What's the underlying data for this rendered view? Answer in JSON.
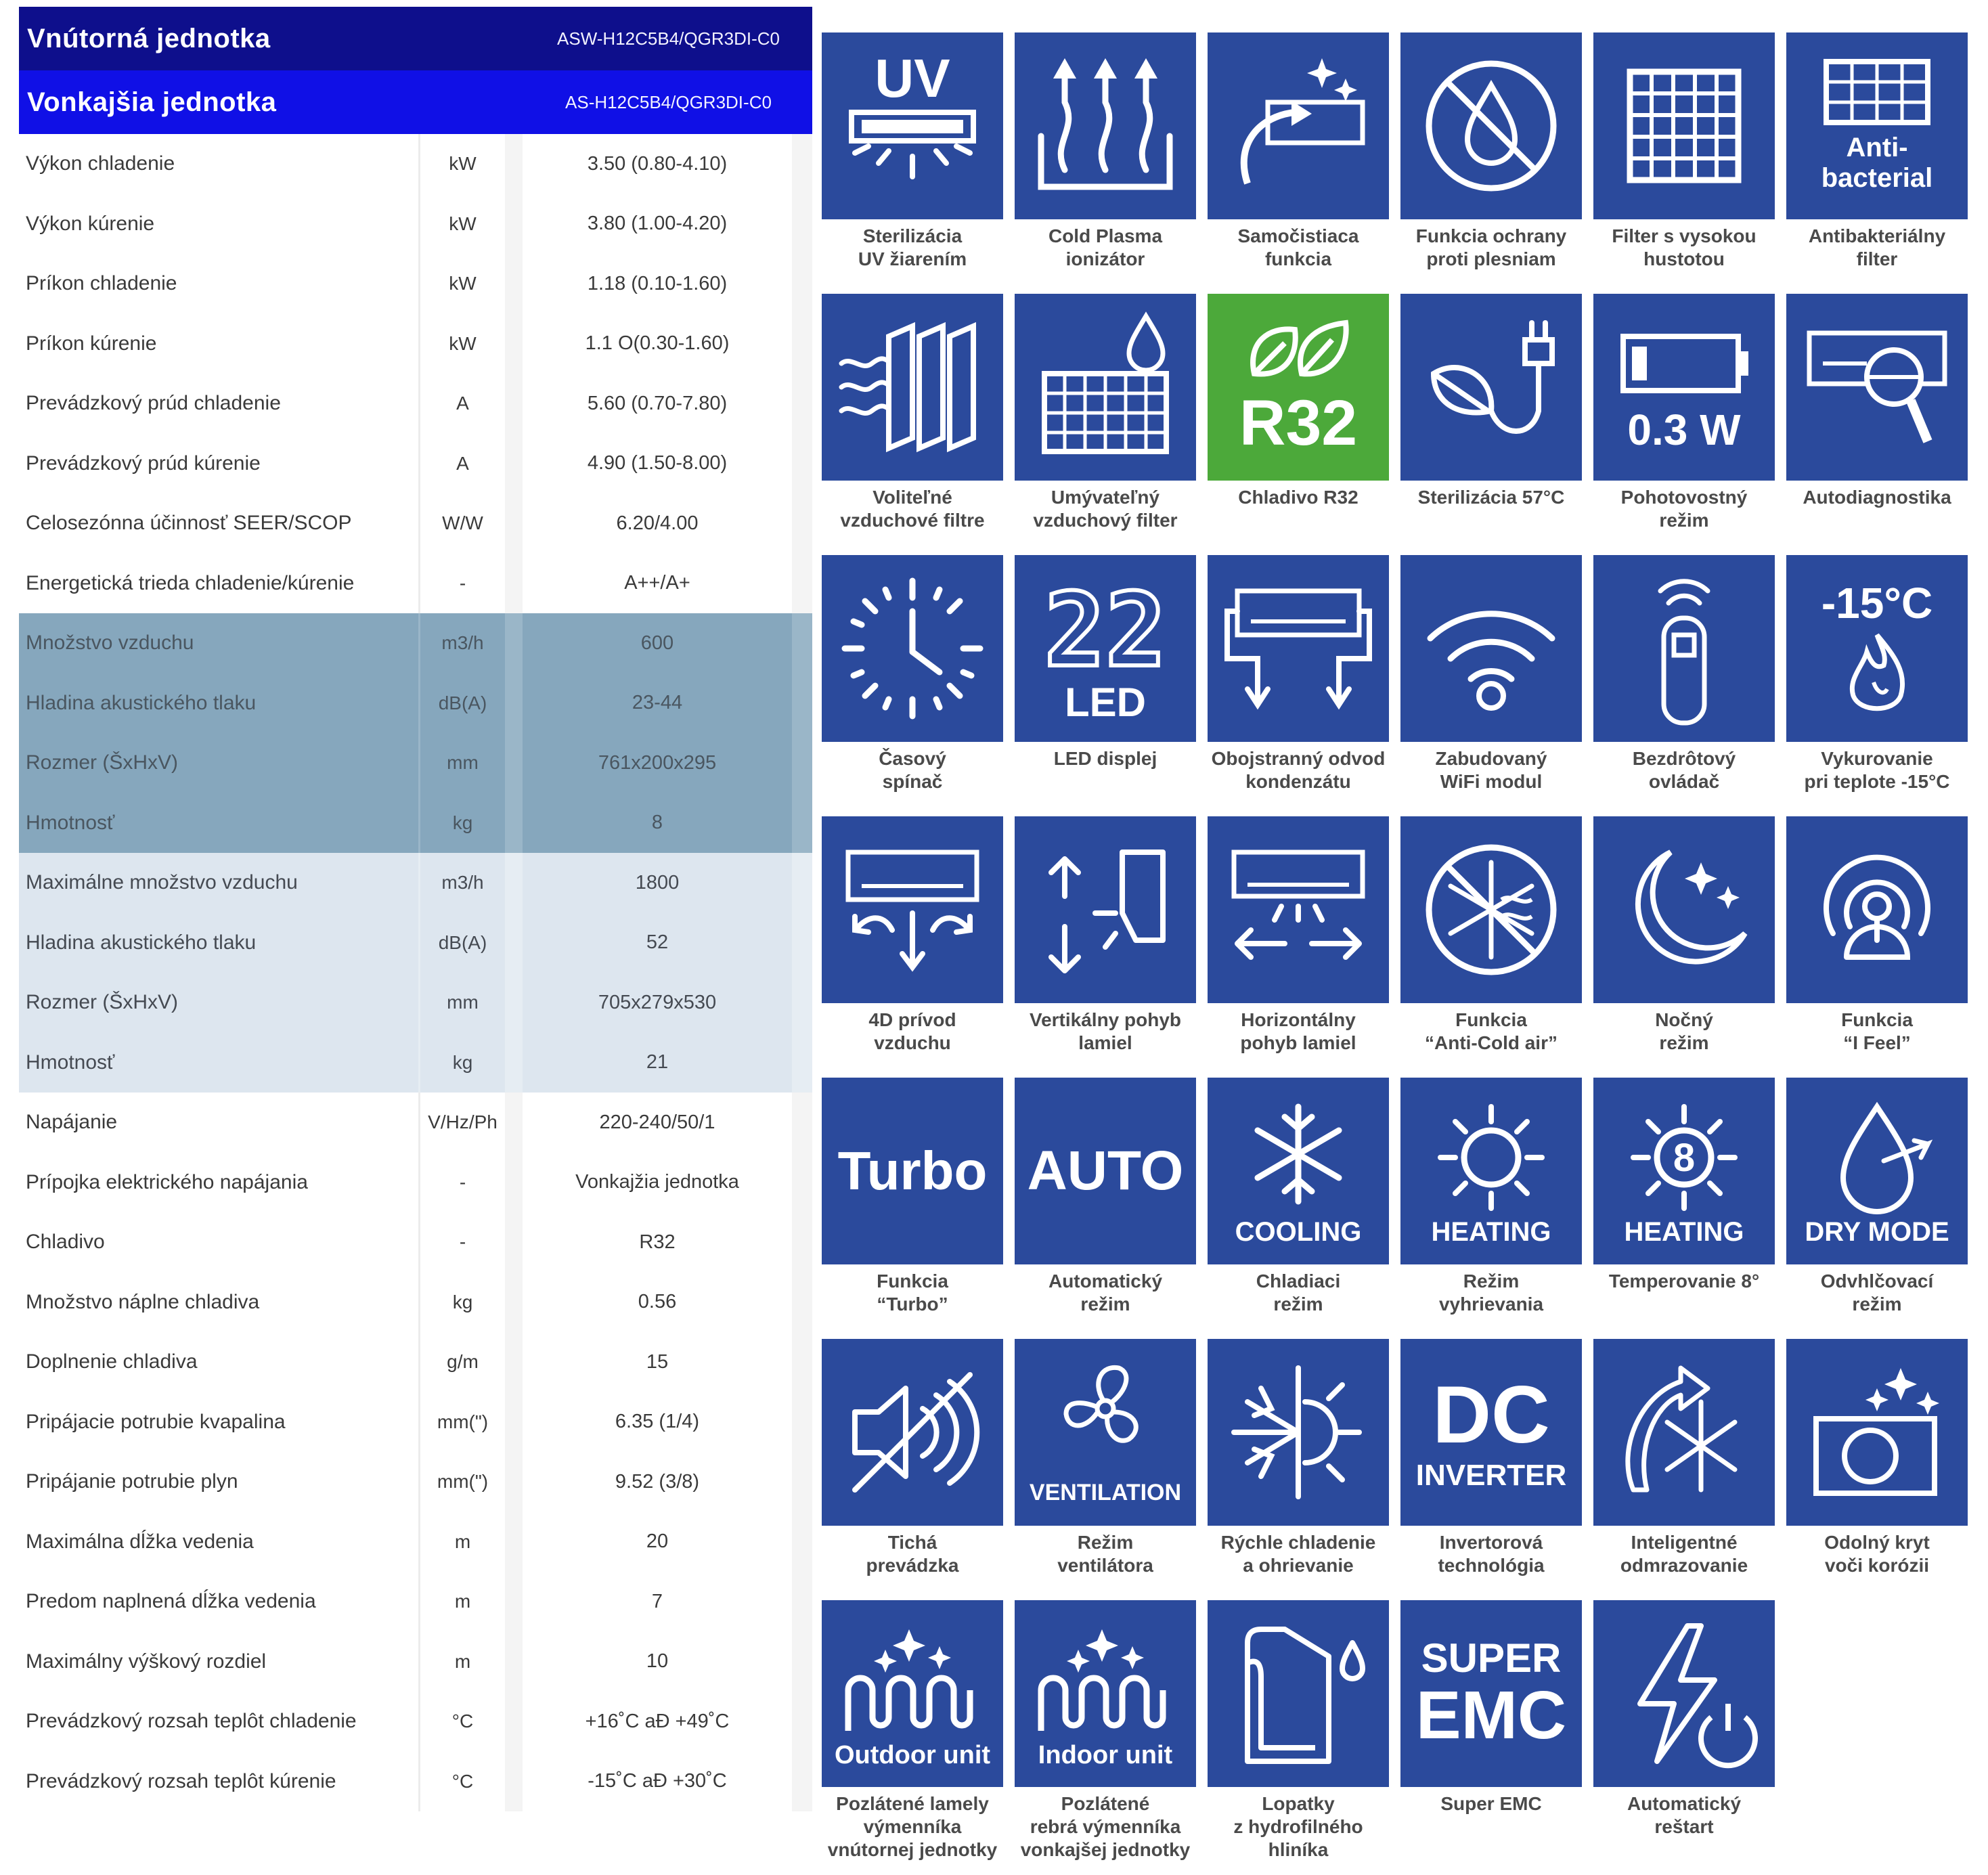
{
  "spec_table": {
    "indoor_header": {
      "label": "Vnútorná jednotka",
      "model": "ASW-H12C5B4/QGR3DI-C0"
    },
    "outdoor_header": {
      "label": "Vonkajšia jednotka",
      "model": "AS-H12C5B4/QGR3DI-C0"
    },
    "general_rows": [
      {
        "label": "Výkon chladenie",
        "unit": "kW",
        "value": "3.50  (0.80-4.10)"
      },
      {
        "label": "Výkon kúrenie",
        "unit": "kW",
        "value": "3.80  (1.00-4.20)"
      },
      {
        "label": "Príkon chladenie",
        "unit": "kW",
        "value": "1.18  (0.10-1.60)"
      },
      {
        "label": "Príkon kúrenie",
        "unit": "kW",
        "value": "1.1 O(0.30-1.60)"
      },
      {
        "label": "Prevádzkový prúd chladenie",
        "unit": "A",
        "value": "5.60  (0.70-7.80)"
      },
      {
        "label": "Prevádzkový prúd kúrenie",
        "unit": "A",
        "value": "4.90  (1.50-8.00)"
      },
      {
        "label": "Celosezónna účinnosť SEER/SCOP",
        "unit": "W/W",
        "value": "6.20/4.00"
      },
      {
        "label": "Energetická trieda chladenie/kúrenie",
        "unit": "-",
        "value": "A++/A+"
      }
    ],
    "indoor_rows": [
      {
        "label": "Množstvo vzduchu",
        "unit": "m3/h",
        "value": "600"
      },
      {
        "label": "Hladina akustického tlaku",
        "unit": "dB(A)",
        "value": "23-44"
      },
      {
        "label": "Rozmer (ŠxHxV)",
        "unit": "mm",
        "value": "761x200x295"
      },
      {
        "label": "Hmotnosť",
        "unit": "kg",
        "value": "8"
      }
    ],
    "outdoor_rows": [
      {
        "label": "Maximálne množstvo vzduchu",
        "unit": "m3/h",
        "value": "1800"
      },
      {
        "label": "Hladina akustického tlaku",
        "unit": "dB(A)",
        "value": "52"
      },
      {
        "label": "Rozmer (ŠxHxV)",
        "unit": "mm",
        "value": "705x279x530"
      },
      {
        "label": "Hmotnosť",
        "unit": "kg",
        "value": "21"
      }
    ],
    "other_rows": [
      {
        "label": "Napájanie",
        "unit": "V/Hz/Ph",
        "value": "220-240/50/1"
      },
      {
        "label": "Prípojka  elektrického  napájania",
        "unit": "-",
        "value": "Vonkajžia jednotka"
      },
      {
        "label": "Chladivo",
        "unit": "-",
        "value": "R32"
      },
      {
        "label": "Množstvo náplne chladiva",
        "unit": "kg",
        "value": "0.56"
      },
      {
        "label": "Doplnenie chladiva",
        "unit": "g/m",
        "value": "15"
      },
      {
        "label": "Pripájacie  potrubie  kvapalina",
        "unit": "mm(\")",
        "value": "6.35  (1/4)"
      },
      {
        "label": "Pripájanie  potrubie  plyn",
        "unit": "mm(\")",
        "value": "9.52  (3/8)"
      },
      {
        "label": "Maximálna dĺžka vedenia",
        "unit": "m",
        "value": "20"
      },
      {
        "label": "Predom naplnená dĺžka vedenia",
        "unit": "m",
        "value": "7"
      },
      {
        "label": "Maximálny výškový rozdiel",
        "unit": "m",
        "value": "10"
      },
      {
        "label": "Prevádzkový rozsah teplôt chladenie",
        "unit": "°C",
        "value": "+16˚C aÐ +49˚C"
      },
      {
        "label": "Prevádzkový rozsah teplôt kúrenie",
        "unit": "°C",
        "value": "-15˚C aÐ +30˚C"
      }
    ]
  },
  "features": {
    "tile_color": "#2b4a9c",
    "r32_tile_color": "#4ca93a",
    "tile_texts": {
      "uv": "UV",
      "anti1": "Anti-",
      "anti2": "bacterial",
      "r32": "R32",
      "standby": "0.3 W",
      "led_num": "22",
      "led": "LED",
      "minus15": "-15°C",
      "turbo": "Turbo",
      "auto": "AUTO",
      "cooling": "COOLING",
      "heating": "HEATING",
      "heating8_num": "8",
      "heating8": "HEATING",
      "drymode": "DRY MODE",
      "ventilation": "VENTILATION",
      "dc": "DC",
      "inverter": "INVERTER",
      "outdoor_unit": "Outdoor unit",
      "indoor_unit": "Indoor unit",
      "super": "SUPER",
      "emc": "EMC"
    },
    "captions": {
      "uv": [
        "Sterilizácia",
        "UV žiarením"
      ],
      "plasma": [
        "Cold Plasma",
        "ionizátor"
      ],
      "selfclean": [
        "Samočistiaca",
        "funkcia"
      ],
      "mould": [
        "Funkcia ochrany",
        "proti plesniam"
      ],
      "hdfilter": [
        "Filter s vysokou",
        "hustotou"
      ],
      "antibac": [
        "Antibakteriálny",
        "filter"
      ],
      "optfilters": [
        "Voliteľné",
        "vzduchové filtre"
      ],
      "washfilter": [
        "Umývateľný",
        "vzduchový filter"
      ],
      "r32": [
        "Chladivo R32"
      ],
      "steril57": [
        "Sterilizácia 57°C"
      ],
      "standby": [
        "Pohotovostný",
        "režim"
      ],
      "diag": [
        "Autodiagnostika"
      ],
      "timer": [
        "Časový",
        "spínač"
      ],
      "led": [
        "LED displej"
      ],
      "drain": [
        "Obojstranný odvod",
        "kondenzátu"
      ],
      "wifi": [
        "Zabudovaný",
        "WiFi modul"
      ],
      "remote": [
        "Bezdrôtový",
        "ovládač"
      ],
      "minus15": [
        "Vykurovanie",
        "pri teplote -15°C"
      ],
      "air4d": [
        "4D prívod",
        "vzduchu"
      ],
      "vertical": [
        "Vertikálny pohyb",
        "lamiel"
      ],
      "horizontal": [
        "Horizontálny",
        "pohyb lamiel"
      ],
      "anticold": [
        "Funkcia",
        "“Anti-Cold air”"
      ],
      "night": [
        "Nočný",
        "režim"
      ],
      "ifeel": [
        "Funkcia",
        "“I Feel”"
      ],
      "turbo": [
        "Funkcia",
        "“Turbo”"
      ],
      "auto": [
        "Automatický",
        "režim"
      ],
      "cooling": [
        "Chladiaci",
        "režim"
      ],
      "heating": [
        "Režim",
        "vyhrievania"
      ],
      "heating8": [
        "Temperovanie 8°"
      ],
      "dry": [
        "Odvhlčovací",
        "režim"
      ],
      "quiet": [
        "Tichá",
        "prevádzka"
      ],
      "fan": [
        "Režim",
        "ventilátora"
      ],
      "fastcool": [
        "Rýchle chladenie",
        "a ohrievanie"
      ],
      "inverter": [
        "Invertorová",
        "technológia"
      ],
      "defrost": [
        "Inteligentné",
        "odmrazovanie"
      ],
      "anticorr": [
        "Odolný kryt",
        "voči korózii"
      ],
      "goldin": [
        "Pozlátené lamely",
        "výmenníka",
        "vnútornej jednotky"
      ],
      "goldout": [
        "Pozlátené",
        "rebrá výmenníka",
        "vonkajšej jednotky"
      ],
      "hydro": [
        "Lopatky",
        "z hydrofilného",
        "hliníka"
      ],
      "emc": [
        "Super EMC"
      ],
      "restart": [
        "Automatický",
        "reštart"
      ]
    }
  }
}
